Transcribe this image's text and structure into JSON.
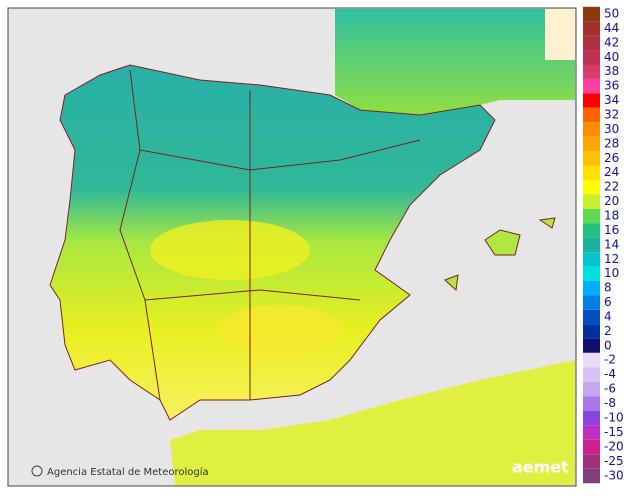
{
  "attribution": "Agencia Estatal de Meteorología",
  "logo": "aemet",
  "legend": {
    "labels": [
      50,
      44,
      42,
      40,
      38,
      36,
      34,
      32,
      30,
      28,
      26,
      24,
      22,
      20,
      18,
      16,
      14,
      12,
      10,
      8,
      6,
      4,
      2,
      0
    ],
    "colors": [
      "#8b3a0e",
      "#a0302a",
      "#b03040",
      "#c03050",
      "#d83a6a",
      "#ff40a0",
      "#ff0000",
      "#ff6000",
      "#ff8c00",
      "#ffa500",
      "#ffc000",
      "#ffe000",
      "#ffff00",
      "#c8f030",
      "#60d850",
      "#20c080",
      "#20b0a0",
      "#00c8c8",
      "#00e0e0",
      "#00b0ff",
      "#0080e0",
      "#0050c0",
      "#0030a0",
      "#101070"
    ],
    "negative_labels": [
      -2,
      -4,
      -6,
      -8,
      -10,
      -15,
      -20,
      -25,
      -30
    ],
    "negative_colors": [
      "#e8dcf8",
      "#d8c4f4",
      "#c4a8f0",
      "#a878ea",
      "#8844e0",
      "#c030c0",
      "#d02090",
      "#a03080",
      "#804080"
    ]
  }
}
